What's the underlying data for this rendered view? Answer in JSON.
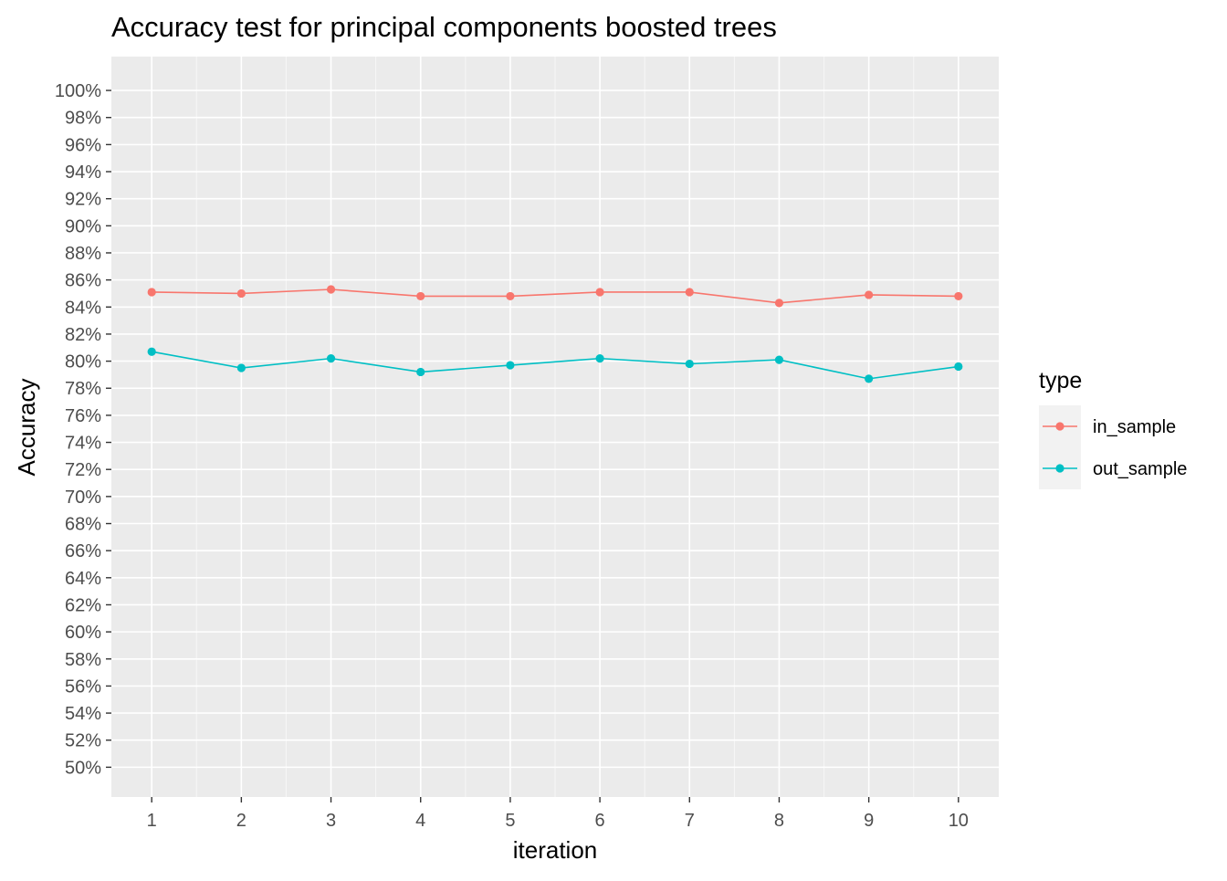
{
  "chart_data": {
    "type": "line",
    "title": "Accuracy test for principal components boosted trees",
    "xlabel": "iteration",
    "ylabel": "Accuracy",
    "x": [
      1,
      2,
      3,
      4,
      5,
      6,
      7,
      8,
      9,
      10
    ],
    "x_ticks": [
      "1",
      "2",
      "3",
      "4",
      "5",
      "6",
      "7",
      "8",
      "9",
      "10"
    ],
    "xlim": [
      0.55,
      10.45
    ],
    "y_ticks": [
      "50%",
      "52%",
      "54%",
      "56%",
      "58%",
      "60%",
      "62%",
      "64%",
      "66%",
      "68%",
      "70%",
      "72%",
      "74%",
      "76%",
      "78%",
      "80%",
      "82%",
      "84%",
      "86%",
      "88%",
      "90%",
      "92%",
      "94%",
      "96%",
      "98%",
      "100%"
    ],
    "ylim": [
      0.478,
      1.025
    ],
    "grid": true,
    "legend_position": "right",
    "legend_title": "type",
    "series": [
      {
        "name": "in_sample",
        "color": "#F8766D",
        "values": [
          0.851,
          0.85,
          0.853,
          0.848,
          0.848,
          0.851,
          0.851,
          0.843,
          0.849,
          0.848
        ]
      },
      {
        "name": "out_sample",
        "color": "#00BFC4",
        "values": [
          0.807,
          0.795,
          0.802,
          0.792,
          0.797,
          0.802,
          0.798,
          0.801,
          0.787,
          0.796
        ]
      }
    ]
  }
}
